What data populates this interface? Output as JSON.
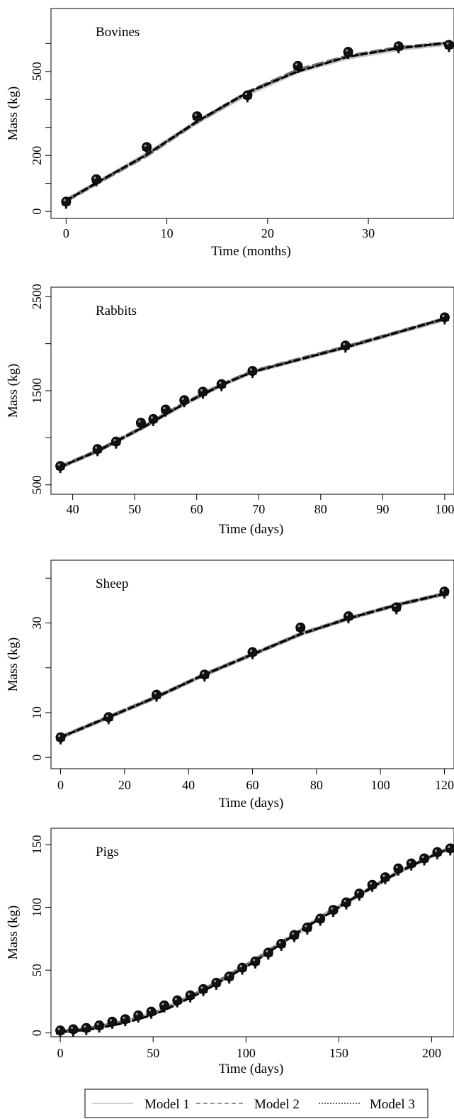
{
  "chart_data": [
    {
      "type": "scatter",
      "title": "Bovines",
      "xlabel": "Time (months)",
      "ylabel": "Mass (kg)",
      "xlim": [
        -1.5,
        38.5
      ],
      "ylim": [
        -25,
        725
      ],
      "xticks": [
        0,
        10,
        20,
        30
      ],
      "yticks": [
        0,
        100,
        200,
        300,
        400,
        500,
        600
      ],
      "ytick_labels": [
        "0",
        "",
        "200",
        "",
        "",
        "500",
        ""
      ],
      "x": [
        0,
        3,
        8,
        13,
        18,
        23,
        28,
        33,
        38
      ],
      "observed": [
        35,
        115,
        230,
        340,
        415,
        520,
        570,
        590,
        595
      ],
      "series": [
        {
          "name": "Model 1",
          "x": [
            0,
            3,
            8,
            13,
            18,
            23,
            28,
            33,
            38
          ],
          "values": [
            40,
            100,
            205,
            320,
            420,
            500,
            550,
            580,
            600
          ]
        },
        {
          "name": "Model 2",
          "x": [
            0,
            3,
            8,
            13,
            18,
            23,
            28,
            33,
            38
          ],
          "values": [
            38,
            100,
            200,
            320,
            425,
            505,
            555,
            585,
            602
          ]
        },
        {
          "name": "Model 3",
          "x": [
            0,
            3,
            8,
            13,
            18,
            23,
            28,
            33,
            38
          ],
          "values": [
            38,
            102,
            203,
            322,
            425,
            500,
            553,
            583,
            603
          ]
        }
      ]
    },
    {
      "type": "scatter",
      "title": "Rabbits",
      "xlabel": "Time (days)",
      "ylabel": "Mass (kg)",
      "xlim": [
        36.5,
        101.5
      ],
      "ylim": [
        400,
        2600
      ],
      "xticks": [
        40,
        50,
        60,
        70,
        80,
        90,
        100
      ],
      "yticks": [
        500,
        1000,
        1500,
        2000,
        2500
      ],
      "ytick_labels": [
        "500",
        "",
        "1500",
        "",
        "2500"
      ],
      "x": [
        38,
        44,
        47,
        51,
        53,
        55,
        58,
        61,
        64,
        69,
        84,
        100
      ],
      "observed": [
        700,
        880,
        960,
        1160,
        1200,
        1300,
        1400,
        1490,
        1570,
        1710,
        1980,
        2280
      ],
      "series": [
        {
          "name": "Model 1",
          "x": [
            38,
            44,
            47,
            51,
            53,
            55,
            58,
            61,
            64,
            69,
            84,
            100
          ],
          "values": [
            690,
            860,
            960,
            1100,
            1170,
            1250,
            1360,
            1460,
            1560,
            1700,
            1960,
            2260
          ]
        },
        {
          "name": "Model 2",
          "x": [
            38,
            44,
            47,
            51,
            53,
            55,
            58,
            61,
            64,
            69,
            84,
            100
          ],
          "values": [
            690,
            860,
            965,
            1100,
            1175,
            1255,
            1365,
            1465,
            1565,
            1705,
            1965,
            2265
          ]
        },
        {
          "name": "Model 3",
          "x": [
            38,
            44,
            47,
            51,
            53,
            55,
            58,
            61,
            64,
            69,
            84,
            100
          ],
          "values": [
            690,
            860,
            960,
            1100,
            1170,
            1250,
            1360,
            1460,
            1560,
            1700,
            1960,
            2265
          ]
        }
      ]
    },
    {
      "type": "scatter",
      "title": "Sheep",
      "xlabel": "Time (days)",
      "ylabel": "Mass (kg)",
      "xlim": [
        -3,
        123
      ],
      "ylim": [
        -2.5,
        44
      ],
      "xticks": [
        0,
        20,
        40,
        60,
        80,
        100,
        120
      ],
      "yticks": [
        0,
        10,
        20,
        30,
        40
      ],
      "ytick_labels": [
        "0",
        "10",
        "",
        "30",
        ""
      ],
      "x": [
        0,
        15,
        30,
        45,
        60,
        75,
        90,
        105,
        120
      ],
      "observed": [
        4.5,
        9,
        14,
        18.5,
        23.5,
        29,
        31.5,
        33.5,
        37
      ],
      "series": [
        {
          "name": "Model 1",
          "x": [
            0,
            15,
            30,
            45,
            60,
            75,
            90,
            105,
            120
          ],
          "values": [
            4.5,
            9,
            13.5,
            18.5,
            23,
            27.5,
            31,
            34,
            36.5
          ]
        },
        {
          "name": "Model 2",
          "x": [
            0,
            15,
            30,
            45,
            60,
            75,
            90,
            105,
            120
          ],
          "values": [
            4.5,
            9,
            13.5,
            18.5,
            23,
            27.5,
            31,
            34,
            36.5
          ]
        },
        {
          "name": "Model 3",
          "x": [
            0,
            15,
            30,
            45,
            60,
            75,
            90,
            105,
            120
          ],
          "values": [
            4.5,
            9,
            13.5,
            18.5,
            23,
            27.5,
            31,
            34,
            36.5
          ]
        }
      ]
    },
    {
      "type": "scatter",
      "title": "Pigs",
      "xlabel": "Time (days)",
      "ylabel": "Mass (kg)",
      "xlim": [
        -5,
        212
      ],
      "ylim": [
        -3,
        163
      ],
      "xticks": [
        0,
        50,
        100,
        150,
        200
      ],
      "yticks": [
        0,
        50,
        100,
        150
      ],
      "ytick_labels": [
        "0",
        "50",
        "100",
        "150"
      ],
      "x": [
        0,
        7,
        14,
        21,
        28,
        35,
        42,
        49,
        56,
        63,
        70,
        77,
        84,
        91,
        98,
        105,
        112,
        119,
        126,
        133,
        140,
        147,
        154,
        161,
        168,
        175,
        182,
        189,
        196,
        203,
        210
      ],
      "observed": [
        2,
        3,
        4,
        6,
        9,
        11,
        14,
        17,
        22,
        26,
        30,
        35,
        40,
        45,
        52,
        57,
        64,
        71,
        78,
        84,
        91,
        98,
        104,
        111,
        118,
        124,
        131,
        135,
        139,
        144,
        147
      ],
      "series": [
        {
          "name": "Model 1",
          "x": [
            0,
            7,
            14,
            21,
            28,
            35,
            42,
            49,
            56,
            63,
            70,
            77,
            84,
            91,
            98,
            105,
            112,
            119,
            126,
            133,
            140,
            147,
            154,
            161,
            168,
            175,
            182,
            189,
            196,
            203,
            210
          ],
          "values": [
            1,
            2,
            3,
            5,
            7,
            9,
            12,
            15,
            19,
            24,
            29,
            34,
            40,
            46,
            52,
            58,
            65,
            72,
            78,
            85,
            92,
            98,
            104,
            110,
            116,
            122,
            128,
            133,
            138,
            143,
            147
          ]
        },
        {
          "name": "Model 2",
          "x": [
            0,
            7,
            14,
            21,
            28,
            35,
            42,
            49,
            56,
            63,
            70,
            77,
            84,
            91,
            98,
            105,
            112,
            119,
            126,
            133,
            140,
            147,
            154,
            161,
            168,
            175,
            182,
            189,
            196,
            203,
            210
          ],
          "values": [
            1,
            2,
            3,
            5,
            7,
            9,
            12,
            15,
            19,
            24,
            29,
            34,
            40,
            46,
            52,
            58,
            65,
            72,
            78,
            85,
            92,
            98,
            104,
            110,
            116,
            122,
            128,
            133,
            138,
            143,
            147
          ]
        },
        {
          "name": "Model 3",
          "x": [
            0,
            7,
            14,
            21,
            28,
            35,
            42,
            49,
            56,
            63,
            70,
            77,
            84,
            91,
            98,
            105,
            112,
            119,
            126,
            133,
            140,
            147,
            154,
            161,
            168,
            175,
            182,
            189,
            196,
            203,
            210
          ],
          "values": [
            1,
            1.5,
            2.5,
            4,
            6,
            8,
            11,
            14,
            18,
            23,
            28,
            33,
            39,
            45,
            51,
            57,
            64,
            71,
            78,
            85,
            91,
            97,
            104,
            110,
            116,
            122,
            128,
            133,
            138,
            143,
            147
          ]
        }
      ]
    }
  ],
  "legend": {
    "placement": "bottom",
    "items": [
      {
        "label": "Model 1",
        "style": "solid",
        "color": "#bdbdbd"
      },
      {
        "label": "Model 2",
        "style": "dashed",
        "color": "#555555"
      },
      {
        "label": "Model 3",
        "style": "dotted",
        "color": "#000000"
      }
    ]
  },
  "colors": {
    "model1": "#c8c8c8",
    "model2": "#6f6f6f",
    "model3": "#000000",
    "points": "#111111"
  }
}
